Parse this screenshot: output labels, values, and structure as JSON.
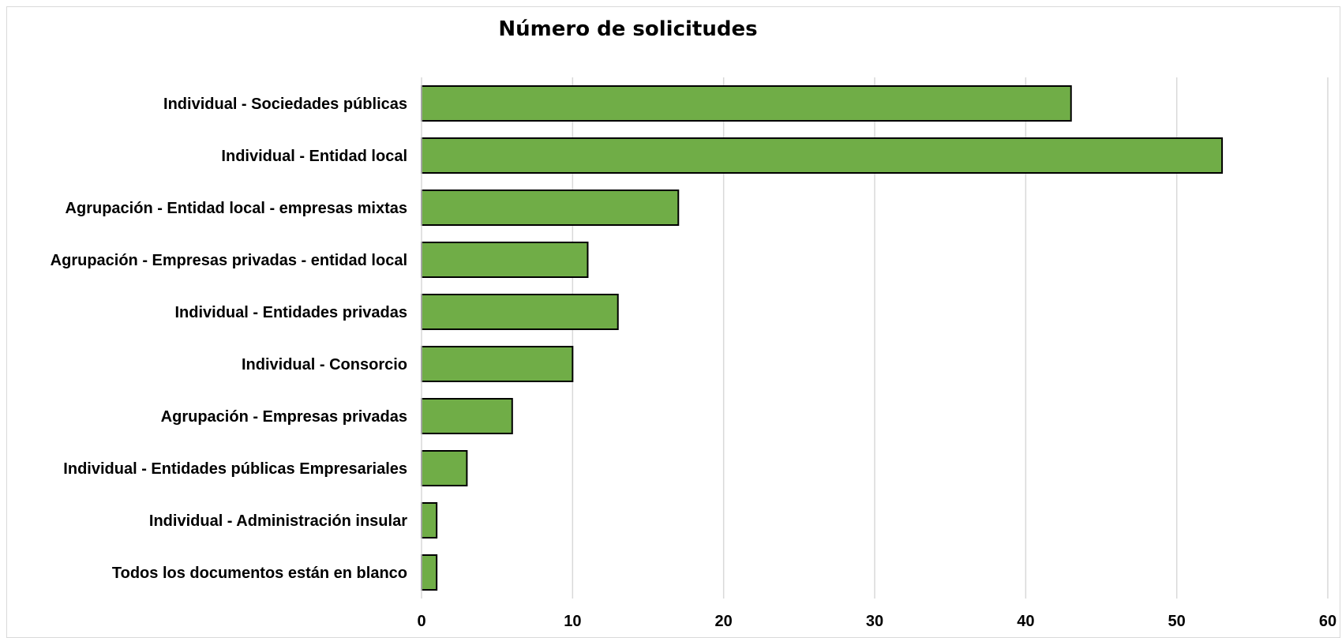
{
  "chart_data": {
    "type": "bar",
    "orientation": "horizontal",
    "title": "Número de solicitudes",
    "xlabel": "",
    "ylabel": "",
    "xlim": [
      0,
      60
    ],
    "ticks": [
      "0",
      "10",
      "20",
      "30",
      "40",
      "50",
      "60"
    ],
    "grid": true,
    "categories": [
      "Individual - Sociedades públicas",
      "Individual - Entidad local",
      "Agrupación - Entidad local - empresas mixtas",
      "Agrupación - Empresas privadas - entidad local",
      "Individual - Entidades privadas",
      "Individual - Consorcio",
      "Agrupación - Empresas privadas",
      "Individual - Entidades públicas Empresariales",
      "Individual - Administración insular",
      "Todos los documentos están en blanco"
    ],
    "values": [
      43,
      53,
      17,
      11,
      13,
      10,
      6,
      3,
      1,
      1
    ],
    "bar_color": "#70ad47",
    "bar_edge_color": "#000000",
    "grid_color": "#d9d9d9"
  }
}
